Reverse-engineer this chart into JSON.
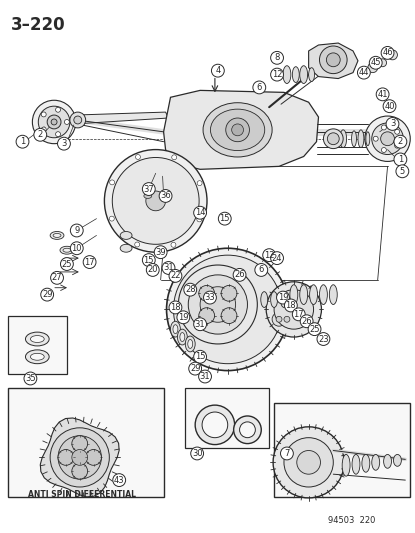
{
  "page_label": "3–220",
  "footer_label": "94503  220",
  "background_color": "#ffffff",
  "line_color": "#2a2a2a",
  "figure_width": 4.15,
  "figure_height": 5.33,
  "dpi": 100,
  "anti_spin_text": "ANTI SPIN DIFFERENTIAL"
}
